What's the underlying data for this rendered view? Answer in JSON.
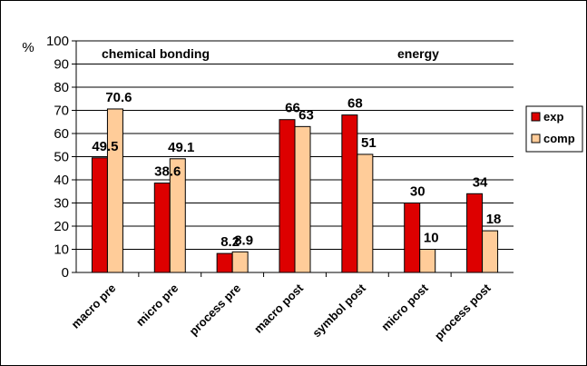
{
  "chart_data": {
    "type": "bar",
    "ylabel": "%",
    "ylim": [
      0,
      100
    ],
    "yticks": [
      0,
      10,
      20,
      30,
      40,
      50,
      60,
      70,
      80,
      90,
      100
    ],
    "categories": [
      "macro pre",
      "micro pre",
      "process pre",
      "macro post",
      "symbol post",
      "micro post",
      "process post"
    ],
    "series": [
      {
        "name": "exp",
        "color": "#dd0000",
        "values": [
          49.5,
          38.6,
          8.2,
          66,
          68,
          30,
          34
        ],
        "labels": [
          "49.5",
          "38.6",
          "8.2",
          "66",
          "68",
          "30",
          "34"
        ]
      },
      {
        "name": "comp",
        "color": "#ffcc99",
        "values": [
          70.6,
          49.1,
          8.9,
          63,
          51,
          10,
          18
        ],
        "labels": [
          "70.6",
          "49.1",
          "8.9",
          "63",
          "51",
          "10",
          "18"
        ]
      }
    ],
    "annotations": [
      "chemical bonding",
      "energy"
    ],
    "grid": true,
    "legend_position": "right"
  }
}
